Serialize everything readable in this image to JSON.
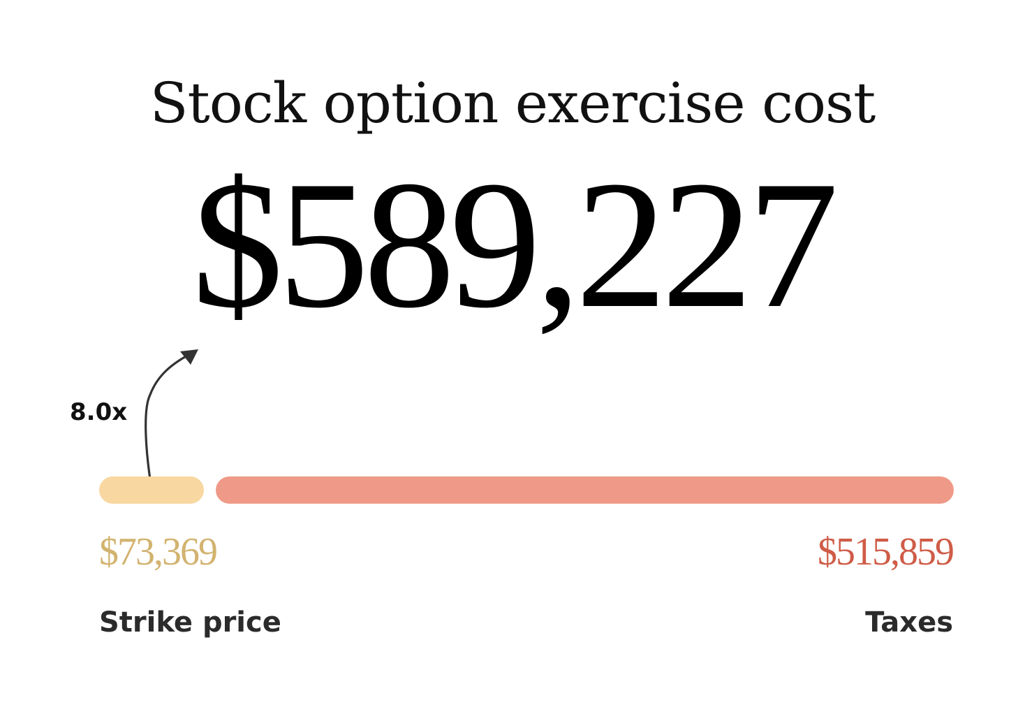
{
  "chart_data": {
    "type": "bar",
    "orientation": "horizontal-stacked",
    "title": "Stock option exercise cost",
    "total": "$589,227",
    "multiplier_label": "8.0x",
    "categories": [
      "Strike price",
      "Taxes"
    ],
    "values": [
      73369,
      515859
    ],
    "value_labels": [
      "$73,369",
      "$515,859"
    ],
    "colors": {
      "strike_bar": "#f8d7a0",
      "taxes_bar": "#ef9a88",
      "strike_text": "#d2b36f",
      "taxes_text": "#cf5c47"
    }
  }
}
